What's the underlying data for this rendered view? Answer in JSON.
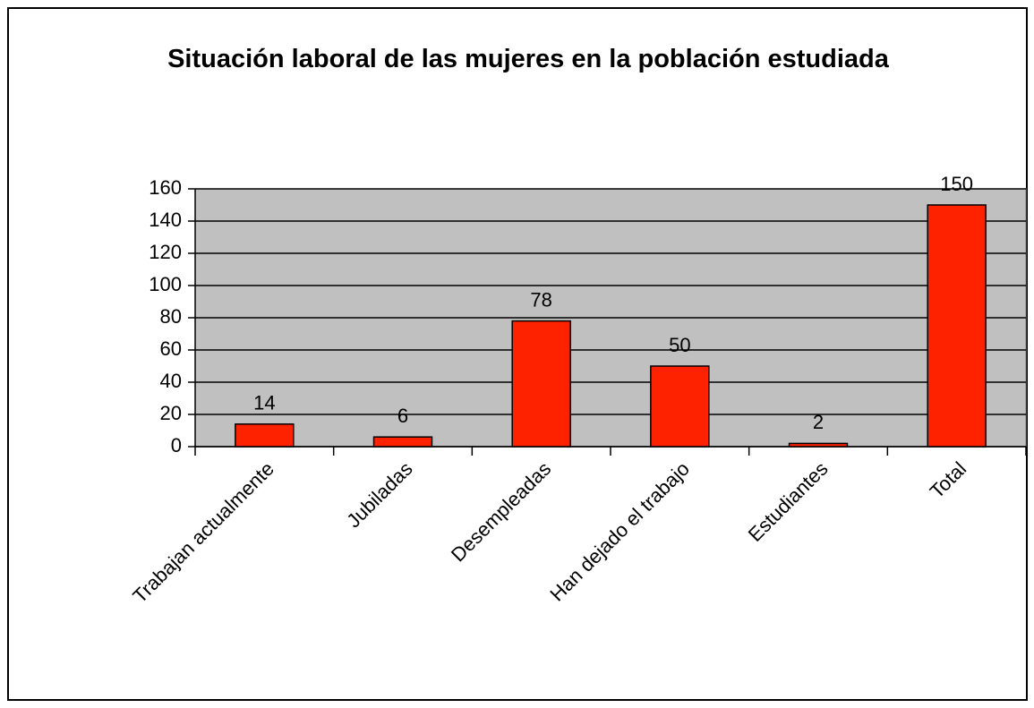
{
  "chart_data": {
    "type": "bar",
    "title": "Situación laboral de las mujeres en la población estudiada",
    "categories": [
      "Trabajan actualmente",
      "Jubiladas",
      "Desempleadas",
      "Han dejado el trabajo",
      "Estudiantes",
      "Total"
    ],
    "values": [
      14,
      6,
      78,
      50,
      2,
      150
    ],
    "color": "#ff2200",
    "ylim": [
      0,
      160
    ],
    "yticks": [
      0,
      20,
      40,
      60,
      80,
      100,
      120,
      140,
      160
    ],
    "grid": true
  }
}
